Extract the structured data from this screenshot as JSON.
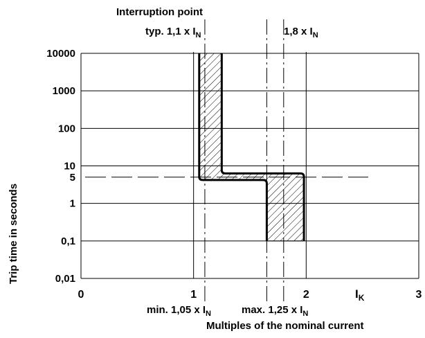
{
  "chart_data": {
    "type": "line",
    "title": "",
    "xlabel": "Multiples of the nominal current",
    "ylabel": "Trip time in seconds",
    "x_axis_end_label": "I",
    "x_axis_end_label_sub": "K",
    "xlim": [
      0,
      3
    ],
    "ylim": [
      0.01,
      10000
    ],
    "y_scale": "log",
    "grid": true,
    "x_ticks": [
      {
        "value": 0,
        "label": "0"
      },
      {
        "value": 1,
        "label": "1"
      },
      {
        "value": 2,
        "label": "2"
      },
      {
        "value": 3,
        "label": "3"
      }
    ],
    "y_ticks": [
      {
        "value": 10000,
        "label": "10000"
      },
      {
        "value": 1000,
        "label": "1000"
      },
      {
        "value": 100,
        "label": "100"
      },
      {
        "value": 10,
        "label": "10"
      },
      {
        "value": 5,
        "label": "5"
      },
      {
        "value": 1,
        "label": "1"
      },
      {
        "value": 0.1,
        "label": "0,1"
      },
      {
        "value": 0.01,
        "label": "0,01"
      }
    ],
    "series": [
      {
        "name": "",
        "x": [
          1.05,
          1.05,
          1.65,
          1.65
        ],
        "y": [
          10000,
          4.2,
          4.2,
          0.1
        ]
      },
      {
        "name": "",
        "x": [
          1.25,
          1.25,
          1.98,
          1.98
        ],
        "y": [
          10000,
          6.3,
          6.3,
          0.1
        ]
      }
    ],
    "reference_lines": [
      {
        "axis": "x",
        "value": 1.1,
        "label": "typ. 1,1 x I",
        "sub": "N",
        "style": "dash-dot"
      },
      {
        "axis": "x",
        "value": 1.8,
        "label": "1,8 x I",
        "sub": "N",
        "style": "dash-dot"
      },
      {
        "axis": "x",
        "value": 1.65,
        "label": "",
        "sub": "",
        "style": "dash-dot"
      },
      {
        "axis": "y",
        "value": 5,
        "label": "",
        "sub": "",
        "style": "dashed"
      }
    ],
    "annotations": {
      "interruption": "Interruption point",
      "min_label": "min. 1,05 x I",
      "min_sub": "N",
      "max_label": "max. 1,25 x I",
      "max_sub": "N"
    }
  }
}
